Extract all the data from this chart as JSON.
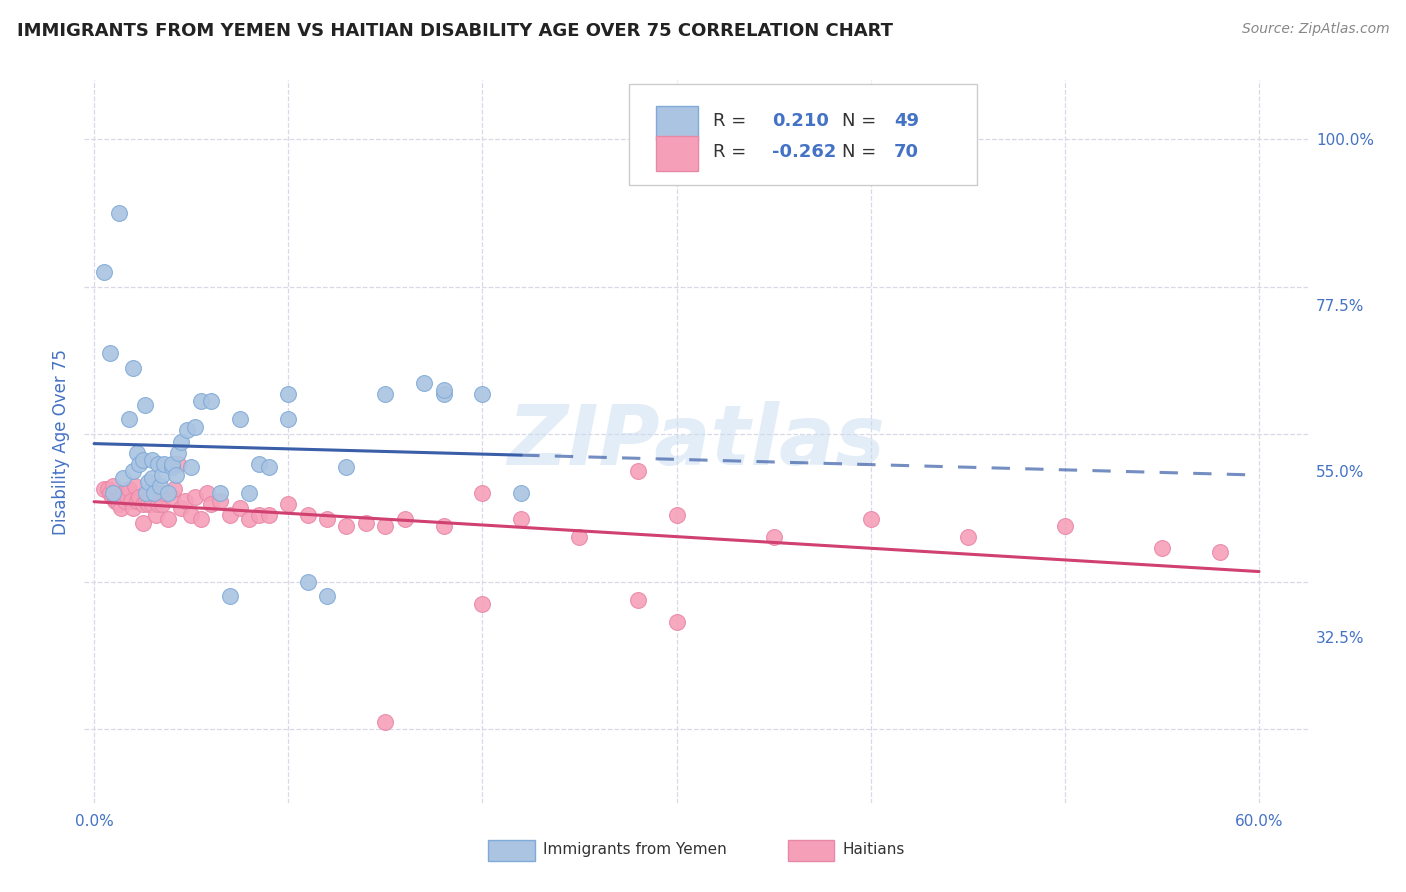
{
  "title": "IMMIGRANTS FROM YEMEN VS HAITIAN DISABILITY AGE OVER 75 CORRELATION CHART",
  "source": "Source: ZipAtlas.com",
  "ylabel": "Disability Age Over 75",
  "xlim": [
    0.0,
    0.6
  ],
  "ylim": [
    0.1,
    1.05
  ],
  "xtick_positions": [
    0.0,
    0.1,
    0.2,
    0.3,
    0.4,
    0.5,
    0.6
  ],
  "xticklabels": [
    "0.0%",
    "",
    "",
    "",
    "",
    "",
    "60.0%"
  ],
  "ytick_positions": [
    0.325,
    0.55,
    0.775,
    1.0
  ],
  "yticklabels": [
    "32.5%",
    "55.0%",
    "77.5%",
    "100.0%"
  ],
  "color_yemen": "#aac4e2",
  "color_haiti": "#f5a0b8",
  "trendline_yemen_color": "#3a5ea8",
  "trendline_haiti_color": "#d04070",
  "watermark": "ZIPatlas",
  "background_color": "#ffffff",
  "grid_color": "#d8d8e8",
  "title_color": "#222222",
  "axis_label_color": "#4472c4",
  "source_color": "#888888",
  "yemen_R": 0.21,
  "yemen_N": 49,
  "haiti_R": -0.262,
  "haiti_N": 70,
  "yemen_scatter_x": [
    0.005,
    0.008,
    0.01,
    0.013,
    0.015,
    0.018,
    0.02,
    0.022,
    0.023,
    0.025,
    0.026,
    0.027,
    0.028,
    0.03,
    0.03,
    0.031,
    0.033,
    0.034,
    0.035,
    0.036,
    0.038,
    0.04,
    0.04,
    0.042,
    0.043,
    0.045,
    0.048,
    0.05,
    0.052,
    0.055,
    0.06,
    0.065,
    0.07,
    0.075,
    0.08,
    0.085,
    0.09,
    0.1,
    0.1,
    0.11,
    0.12,
    0.13,
    0.15,
    0.17,
    0.18,
    0.2,
    0.22,
    0.02,
    0.18
  ],
  "yemen_scatter_y": [
    0.82,
    0.71,
    0.52,
    0.9,
    0.54,
    0.62,
    0.55,
    0.575,
    0.56,
    0.565,
    0.64,
    0.52,
    0.535,
    0.54,
    0.565,
    0.52,
    0.56,
    0.53,
    0.545,
    0.56,
    0.52,
    0.555,
    0.56,
    0.545,
    0.575,
    0.59,
    0.605,
    0.555,
    0.61,
    0.645,
    0.645,
    0.52,
    0.38,
    0.62,
    0.52,
    0.56,
    0.555,
    0.62,
    0.655,
    0.4,
    0.38,
    0.555,
    0.655,
    0.67,
    0.655,
    0.655,
    0.52,
    0.69,
    0.66
  ],
  "haiti_scatter_x": [
    0.005,
    0.007,
    0.008,
    0.009,
    0.01,
    0.011,
    0.012,
    0.013,
    0.014,
    0.015,
    0.016,
    0.017,
    0.018,
    0.019,
    0.02,
    0.021,
    0.022,
    0.023,
    0.025,
    0.025,
    0.027,
    0.028,
    0.029,
    0.03,
    0.031,
    0.032,
    0.033,
    0.034,
    0.035,
    0.036,
    0.038,
    0.04,
    0.041,
    0.043,
    0.045,
    0.047,
    0.05,
    0.052,
    0.055,
    0.058,
    0.06,
    0.065,
    0.07,
    0.075,
    0.08,
    0.085,
    0.09,
    0.1,
    0.11,
    0.12,
    0.13,
    0.14,
    0.15,
    0.16,
    0.18,
    0.2,
    0.22,
    0.25,
    0.28,
    0.3,
    0.35,
    0.4,
    0.45,
    0.5,
    0.55,
    0.58,
    0.28,
    0.2,
    0.3,
    0.15
  ],
  "haiti_scatter_y": [
    0.525,
    0.525,
    0.52,
    0.515,
    0.53,
    0.51,
    0.51,
    0.505,
    0.5,
    0.52,
    0.51,
    0.515,
    0.525,
    0.51,
    0.5,
    0.53,
    0.51,
    0.515,
    0.48,
    0.505,
    0.51,
    0.505,
    0.515,
    0.505,
    0.52,
    0.49,
    0.505,
    0.52,
    0.505,
    0.52,
    0.485,
    0.515,
    0.525,
    0.56,
    0.5,
    0.51,
    0.49,
    0.515,
    0.485,
    0.52,
    0.505,
    0.51,
    0.49,
    0.5,
    0.485,
    0.49,
    0.49,
    0.505,
    0.49,
    0.485,
    0.475,
    0.48,
    0.475,
    0.485,
    0.475,
    0.52,
    0.485,
    0.46,
    0.55,
    0.49,
    0.46,
    0.485,
    0.46,
    0.475,
    0.445,
    0.44,
    0.375,
    0.37,
    0.345,
    0.21
  ]
}
